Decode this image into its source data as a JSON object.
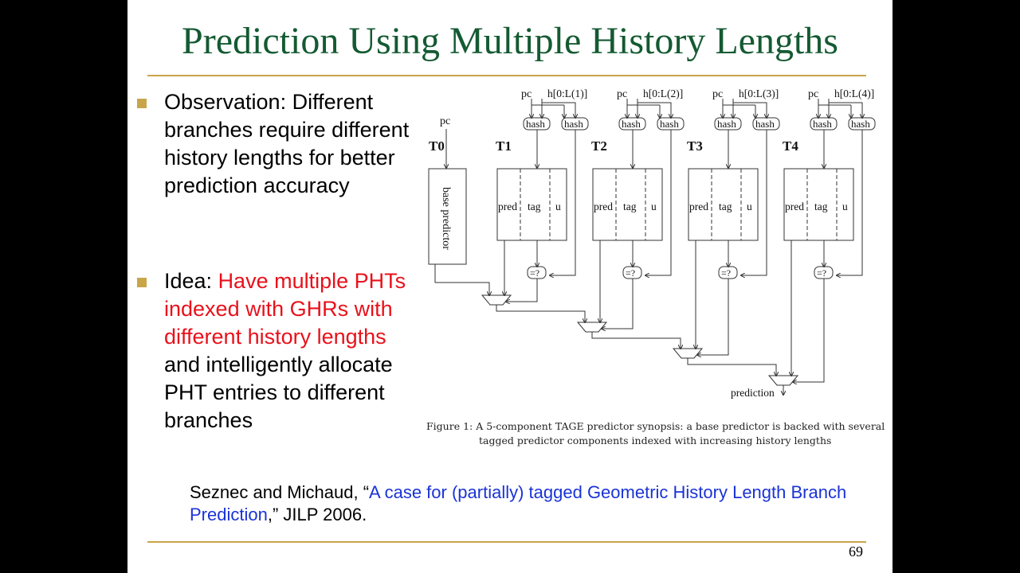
{
  "slide": {
    "title": "Prediction Using Multiple History Lengths",
    "bullets": [
      {
        "text": "Observation: Different branches require different history lengths for better prediction accuracy"
      },
      {
        "prefix": "Idea: ",
        "highlight": "Have multiple PHTs indexed with GHRs with different history lengths",
        "suffix": " and intelligently allocate PHT entries to different branches"
      }
    ],
    "reference": {
      "authors": "Seznec and Michaud, “",
      "link_text": "A case for (partially) tagged Geometric History Length Branch Prediction",
      "suffix": ",” JILP 2006."
    },
    "page_number": "69"
  },
  "figure": {
    "base": {
      "label": "T0",
      "input": "pc",
      "box_label": "base predictor"
    },
    "tables": [
      {
        "label": "T1",
        "pc": "pc",
        "history": "h[0:L(1)]"
      },
      {
        "label": "T2",
        "pc": "pc",
        "history": "h[0:L(2)]"
      },
      {
        "label": "T3",
        "pc": "pc",
        "history": "h[0:L(3)]"
      },
      {
        "label": "T4",
        "pc": "pc",
        "history": "h[0:L(4)]"
      }
    ],
    "hash_label": "hash",
    "compare_label": "=?",
    "fields": [
      "pred",
      "tag",
      "u"
    ],
    "output_label": "prediction",
    "caption_line1": "Figure 1:  A 5-component TAGE predictor synopsis: a base predictor is backed with several",
    "caption_line2": "tagged predictor components indexed with increasing history lengths",
    "colors": {
      "title": "#145a32",
      "accent": "#c9a54a",
      "highlight": "#e8111b",
      "link": "#1a33d6"
    }
  }
}
